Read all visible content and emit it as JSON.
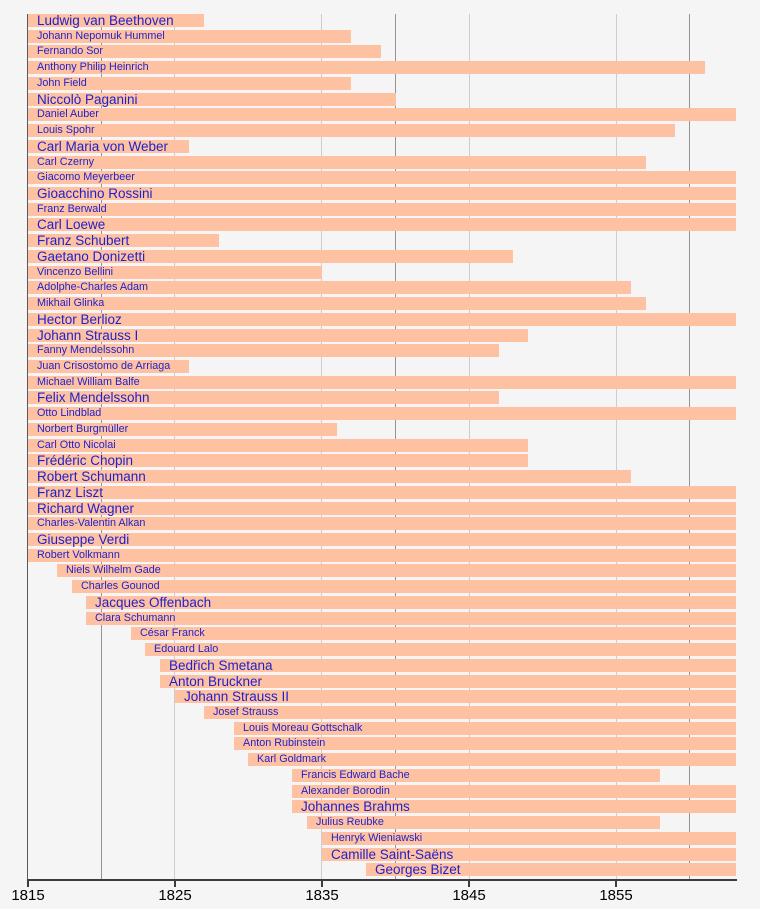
{
  "chart_data": {
    "type": "bar",
    "variant": "horizontal-lifespan-timeline",
    "title": "",
    "xlabel": "",
    "ylabel": "",
    "x_axis": {
      "unit": "year",
      "range": [
        1815,
        1863
      ],
      "tick_years": [
        1815,
        1825,
        1835,
        1845,
        1855
      ],
      "tick_labels": [
        "1815",
        "1825",
        "1835",
        "1845",
        "1855"
      ],
      "gridlines_major_years": [
        1820,
        1840,
        1860
      ],
      "gridlines_minor_years": [
        1825,
        1835,
        1845,
        1855
      ],
      "start_line_year": 1815,
      "grid": "on",
      "legend": "none"
    },
    "bars": [
      {
        "name": "Ludwig van Beethoven",
        "label_size": "large",
        "start_year": 1815,
        "end_year": 1827,
        "clipped_right": false
      },
      {
        "name": "Johann Nepomuk Hummel",
        "label_size": "medium",
        "start_year": 1815,
        "end_year": 1837,
        "clipped_right": false
      },
      {
        "name": "Fernando Sor",
        "label_size": "medium",
        "start_year": 1815,
        "end_year": 1839,
        "clipped_right": false
      },
      {
        "name": "Anthony Philip Heinrich",
        "label_size": "medium",
        "start_year": 1815,
        "end_year": 1861,
        "clipped_right": false
      },
      {
        "name": "John Field",
        "label_size": "medium",
        "start_year": 1815,
        "end_year": 1837,
        "clipped_right": false
      },
      {
        "name": "Niccolò Paganini",
        "label_size": "large",
        "start_year": 1815,
        "end_year": 1840,
        "clipped_right": false
      },
      {
        "name": "Daniel Auber",
        "label_size": "medium",
        "start_year": 1815,
        "end_year": null,
        "clipped_right": true
      },
      {
        "name": "Louis Spohr",
        "label_size": "medium",
        "start_year": 1815,
        "end_year": 1859,
        "clipped_right": false
      },
      {
        "name": "Carl Maria von Weber",
        "label_size": "large",
        "start_year": 1815,
        "end_year": 1826,
        "clipped_right": false
      },
      {
        "name": "Carl Czerny",
        "label_size": "medium",
        "start_year": 1815,
        "end_year": 1857,
        "clipped_right": false
      },
      {
        "name": "Giacomo Meyerbeer",
        "label_size": "medium",
        "start_year": 1815,
        "end_year": null,
        "clipped_right": true
      },
      {
        "name": "Gioacchino Rossini",
        "label_size": "large",
        "start_year": 1815,
        "end_year": null,
        "clipped_right": true
      },
      {
        "name": "Franz Berwald",
        "label_size": "medium",
        "start_year": 1815,
        "end_year": null,
        "clipped_right": true
      },
      {
        "name": "Carl Loewe",
        "label_size": "large",
        "start_year": 1815,
        "end_year": null,
        "clipped_right": true
      },
      {
        "name": "Franz Schubert",
        "label_size": "large",
        "start_year": 1815,
        "end_year": 1828,
        "clipped_right": false
      },
      {
        "name": "Gaetano Donizetti",
        "label_size": "large",
        "start_year": 1815,
        "end_year": 1848,
        "clipped_right": false
      },
      {
        "name": "Vincenzo Bellini",
        "label_size": "medium",
        "start_year": 1815,
        "end_year": 1835,
        "clipped_right": false
      },
      {
        "name": "Adolphe-Charles Adam",
        "label_size": "medium",
        "start_year": 1815,
        "end_year": 1856,
        "clipped_right": false
      },
      {
        "name": "Mikhail Glinka",
        "label_size": "medium",
        "start_year": 1815,
        "end_year": 1857,
        "clipped_right": false
      },
      {
        "name": "Hector Berlioz",
        "label_size": "large",
        "start_year": 1815,
        "end_year": null,
        "clipped_right": true
      },
      {
        "name": "Johann Strauss I",
        "label_size": "large",
        "start_year": 1815,
        "end_year": 1849,
        "clipped_right": false
      },
      {
        "name": "Fanny Mendelssohn",
        "label_size": "medium",
        "start_year": 1815,
        "end_year": 1847,
        "clipped_right": false
      },
      {
        "name": "Juan Crisostomo de Arriaga",
        "label_size": "medium",
        "start_year": 1815,
        "end_year": 1826,
        "clipped_right": false
      },
      {
        "name": "Michael William Balfe",
        "label_size": "medium",
        "start_year": 1815,
        "end_year": null,
        "clipped_right": true
      },
      {
        "name": "Felix Mendelssohn",
        "label_size": "large",
        "start_year": 1815,
        "end_year": 1847,
        "clipped_right": false
      },
      {
        "name": "Otto Lindblad",
        "label_size": "medium",
        "start_year": 1815,
        "end_year": null,
        "clipped_right": true
      },
      {
        "name": "Norbert Burgmüller",
        "label_size": "medium",
        "start_year": 1815,
        "end_year": 1836,
        "clipped_right": false
      },
      {
        "name": "Carl Otto Nicolai",
        "label_size": "medium",
        "start_year": 1815,
        "end_year": 1849,
        "clipped_right": false
      },
      {
        "name": "Frédéric Chopin",
        "label_size": "large",
        "start_year": 1815,
        "end_year": 1849,
        "clipped_right": false
      },
      {
        "name": "Robert Schumann",
        "label_size": "large",
        "start_year": 1815,
        "end_year": 1856,
        "clipped_right": false
      },
      {
        "name": "Franz Liszt",
        "label_size": "large",
        "start_year": 1815,
        "end_year": null,
        "clipped_right": true
      },
      {
        "name": "Richard Wagner",
        "label_size": "large",
        "start_year": 1815,
        "end_year": null,
        "clipped_right": true
      },
      {
        "name": "Charles-Valentin Alkan",
        "label_size": "medium",
        "start_year": 1815,
        "end_year": null,
        "clipped_right": true
      },
      {
        "name": "Giuseppe Verdi",
        "label_size": "large",
        "start_year": 1815,
        "end_year": null,
        "clipped_right": true
      },
      {
        "name": "Robert Volkmann",
        "label_size": "medium",
        "start_year": 1815,
        "end_year": null,
        "clipped_right": true
      },
      {
        "name": "Niels Wilhelm Gade",
        "label_size": "medium",
        "start_year": 1817,
        "end_year": null,
        "clipped_right": true
      },
      {
        "name": "Charles Gounod",
        "label_size": "medium",
        "start_year": 1818,
        "end_year": null,
        "clipped_right": true
      },
      {
        "name": "Jacques Offenbach",
        "label_size": "large",
        "start_year": 1819,
        "end_year": null,
        "clipped_right": true
      },
      {
        "name": "Clara Schumann",
        "label_size": "medium",
        "start_year": 1819,
        "end_year": null,
        "clipped_right": true
      },
      {
        "name": "César Franck",
        "label_size": "medium",
        "start_year": 1822,
        "end_year": null,
        "clipped_right": true
      },
      {
        "name": "Edouard Lalo",
        "label_size": "medium",
        "start_year": 1823,
        "end_year": null,
        "clipped_right": true
      },
      {
        "name": "Bedřich Smetana",
        "label_size": "large",
        "start_year": 1824,
        "end_year": null,
        "clipped_right": true
      },
      {
        "name": "Anton Bruckner",
        "label_size": "large",
        "start_year": 1824,
        "end_year": null,
        "clipped_right": true
      },
      {
        "name": "Johann Strauss II",
        "label_size": "large",
        "start_year": 1825,
        "end_year": null,
        "clipped_right": true
      },
      {
        "name": "Josef Strauss",
        "label_size": "medium",
        "start_year": 1827,
        "end_year": null,
        "clipped_right": true
      },
      {
        "name": "Louis Moreau Gottschalk",
        "label_size": "medium",
        "start_year": 1829,
        "end_year": null,
        "clipped_right": true
      },
      {
        "name": "Anton Rubinstein",
        "label_size": "medium",
        "start_year": 1829,
        "end_year": null,
        "clipped_right": true
      },
      {
        "name": "Karl Goldmark",
        "label_size": "medium",
        "start_year": 1830,
        "end_year": null,
        "clipped_right": true
      },
      {
        "name": "Francis Edward Bache",
        "label_size": "medium",
        "start_year": 1833,
        "end_year": 1858,
        "clipped_right": false
      },
      {
        "name": "Alexander Borodin",
        "label_size": "medium",
        "start_year": 1833,
        "end_year": null,
        "clipped_right": true
      },
      {
        "name": "Johannes Brahms",
        "label_size": "large",
        "start_year": 1833,
        "end_year": null,
        "clipped_right": true
      },
      {
        "name": "Julius Reubke",
        "label_size": "medium",
        "start_year": 1834,
        "end_year": 1858,
        "clipped_right": false
      },
      {
        "name": "Henryk Wieniawski",
        "label_size": "medium",
        "start_year": 1835,
        "end_year": null,
        "clipped_right": true
      },
      {
        "name": "Camille Saint-Saëns",
        "label_size": "large",
        "start_year": 1835,
        "end_year": null,
        "clipped_right": true
      },
      {
        "name": "Georges Bizet",
        "label_size": "large",
        "start_year": 1838,
        "end_year": null,
        "clipped_right": true
      }
    ]
  },
  "colors": {
    "background": "#f5f5f5",
    "bar_fill": "#fec2a2",
    "label_text": "#2121cb",
    "axis": "#3c3c3c",
    "axis_label_text": "#000000",
    "grid_major": "#949494",
    "grid_minor": "#cdcdcd",
    "start_line": "#5a5a5a"
  }
}
